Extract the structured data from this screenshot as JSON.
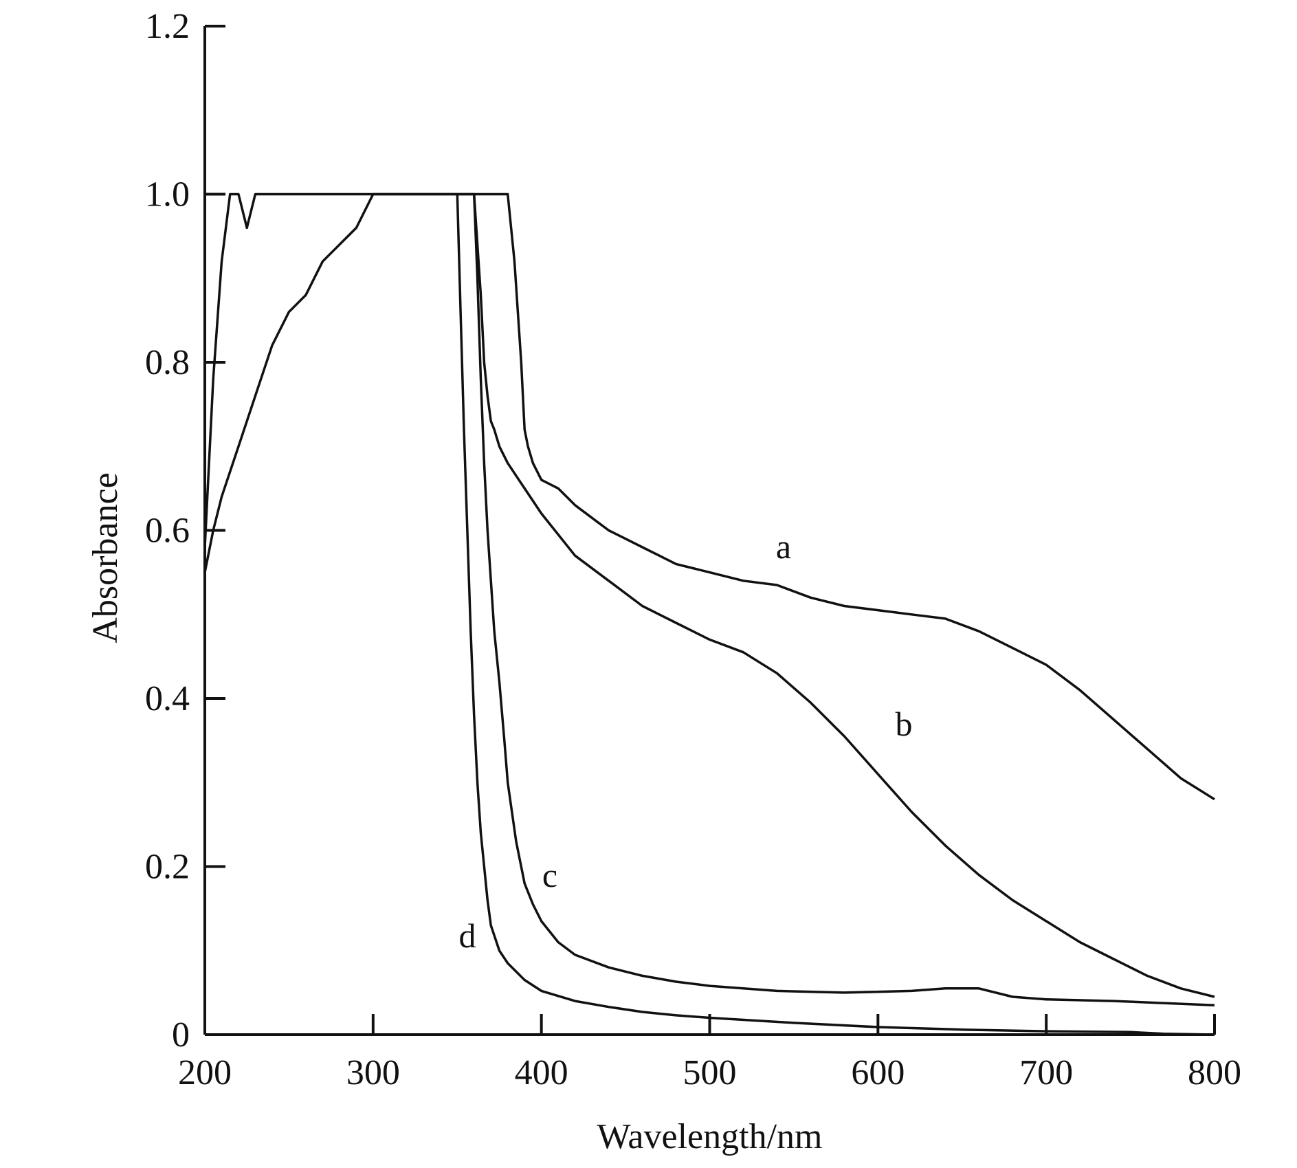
{
  "chart_data": {
    "type": "line",
    "title": "",
    "xlabel": "Wavelength/nm",
    "ylabel": "Absorbance",
    "xlim": [
      200,
      800
    ],
    "ylim": [
      0,
      1.2
    ],
    "x_ticks": [
      "200",
      "300",
      "400",
      "500",
      "600",
      "700",
      "800"
    ],
    "x_tick_values": [
      200,
      300,
      400,
      500,
      600,
      700,
      800
    ],
    "y_ticks": [
      "0",
      "0.2",
      "0.4",
      "0.6",
      "0.8",
      "1.0",
      "1.2"
    ],
    "y_tick_values": [
      0,
      0.2,
      0.4,
      0.6,
      0.8,
      1.0,
      1.2
    ],
    "grid": false,
    "legend": "none",
    "line_color": "#111111",
    "series": [
      {
        "name": "a",
        "x": [
          200,
          205,
          210,
          215,
          220,
          225,
          230,
          240,
          250,
          260,
          270,
          280,
          290,
          300,
          350,
          380,
          384,
          386,
          388,
          390,
          392,
          395,
          400,
          410,
          420,
          430,
          440,
          450,
          460,
          470,
          480,
          490,
          500,
          520,
          540,
          560,
          580,
          600,
          620,
          640,
          660,
          680,
          700,
          720,
          740,
          760,
          780,
          800
        ],
        "values": [
          0.58,
          0.78,
          0.92,
          1.0,
          1.0,
          0.96,
          1.0,
          1.0,
          1.0,
          1.0,
          1.0,
          1.0,
          1.0,
          1.0,
          1.0,
          1.0,
          0.92,
          0.86,
          0.8,
          0.72,
          0.7,
          0.68,
          0.66,
          0.65,
          0.63,
          0.615,
          0.6,
          0.59,
          0.58,
          0.57,
          0.56,
          0.555,
          0.55,
          0.54,
          0.535,
          0.52,
          0.51,
          0.505,
          0.5,
          0.495,
          0.48,
          0.46,
          0.44,
          0.41,
          0.375,
          0.34,
          0.305,
          0.28
        ]
      },
      {
        "name": "b",
        "x": [
          200,
          205,
          210,
          220,
          230,
          240,
          250,
          260,
          270,
          280,
          290,
          300,
          350,
          360,
          364,
          366,
          368,
          370,
          372,
          375,
          380,
          390,
          400,
          420,
          440,
          460,
          480,
          500,
          520,
          540,
          560,
          580,
          600,
          620,
          640,
          660,
          680,
          700,
          720,
          740,
          760,
          780,
          800
        ],
        "values": [
          0.55,
          0.6,
          0.64,
          0.7,
          0.76,
          0.82,
          0.86,
          0.88,
          0.92,
          0.94,
          0.96,
          1.0,
          1.0,
          1.0,
          0.88,
          0.8,
          0.76,
          0.73,
          0.72,
          0.7,
          0.68,
          0.65,
          0.62,
          0.57,
          0.54,
          0.51,
          0.49,
          0.47,
          0.455,
          0.43,
          0.395,
          0.355,
          0.31,
          0.265,
          0.225,
          0.19,
          0.16,
          0.135,
          0.11,
          0.09,
          0.07,
          0.055,
          0.045
        ]
      },
      {
        "name": "c",
        "x": [
          360,
          362,
          364,
          366,
          368,
          370,
          372,
          375,
          378,
          380,
          385,
          390,
          395,
          400,
          410,
          420,
          440,
          460,
          480,
          500,
          540,
          580,
          620,
          640,
          660,
          680,
          700,
          740,
          800
        ],
        "values": [
          1.0,
          0.9,
          0.78,
          0.68,
          0.6,
          0.54,
          0.48,
          0.42,
          0.35,
          0.3,
          0.23,
          0.18,
          0.155,
          0.135,
          0.11,
          0.095,
          0.08,
          0.07,
          0.063,
          0.058,
          0.052,
          0.05,
          0.052,
          0.055,
          0.055,
          0.045,
          0.042,
          0.04,
          0.035
        ]
      },
      {
        "name": "d",
        "x": [
          350,
          352,
          354,
          356,
          358,
          360,
          362,
          364,
          366,
          368,
          370,
          375,
          380,
          390,
          400,
          420,
          440,
          460,
          480,
          500,
          550,
          600,
          650,
          700,
          750,
          770,
          800
        ],
        "values": [
          1.0,
          0.86,
          0.72,
          0.6,
          0.48,
          0.38,
          0.3,
          0.24,
          0.2,
          0.16,
          0.13,
          0.1,
          0.085,
          0.065,
          0.052,
          0.04,
          0.033,
          0.027,
          0.023,
          0.02,
          0.014,
          0.009,
          0.006,
          0.004,
          0.003,
          0.001,
          0.0
        ]
      }
    ]
  }
}
